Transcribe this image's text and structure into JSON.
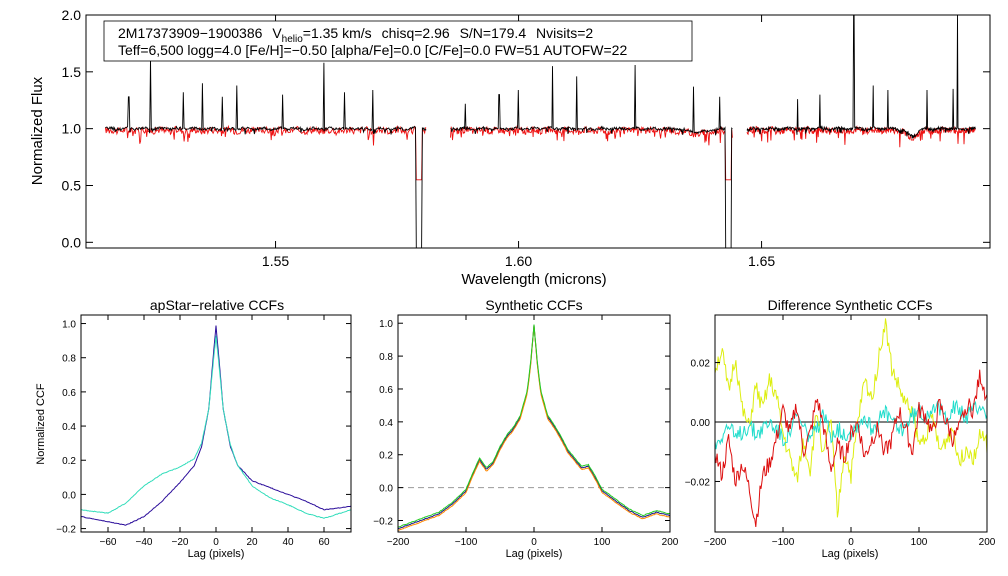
{
  "colors": {
    "spectrum_observed": "#000000",
    "spectrum_model": "#ee1111",
    "ccf_primary": "#2a0c9a",
    "ccf_secondary": "#33ddbb",
    "series_red": "#dd1010",
    "series_green": "#22cc22",
    "series_cyan": "#22ddcc",
    "series_yellow": "#ddee11",
    "series_navy": "#1a1a8a",
    "series_orange": "#ff8800"
  },
  "chart_data": [
    {
      "id": "spectrum",
      "type": "line",
      "title": "",
      "xlabel": "Wavelength (microns)",
      "ylabel": "Normalized Flux",
      "xlim": [
        1.511,
        1.697
      ],
      "ylim": [
        -0.05,
        2.0
      ],
      "xticks": [
        1.55,
        1.6,
        1.65
      ],
      "xtick_labels": [
        "1.55",
        "1.60",
        "1.65"
      ],
      "yticks": [
        0.0,
        0.5,
        1.0,
        1.5,
        2.0
      ],
      "ytick_labels": [
        "0.0",
        "0.5",
        "1.0",
        "1.5",
        "2.0"
      ],
      "chips": [
        [
          1.515,
          1.581
        ],
        [
          1.586,
          1.644
        ],
        [
          1.647,
          1.694
        ]
      ],
      "emission_spikes": [
        [
          1.5198,
          1.28
        ],
        [
          1.5243,
          1.62
        ],
        [
          1.531,
          1.32
        ],
        [
          1.535,
          1.4
        ],
        [
          1.539,
          1.28
        ],
        [
          1.542,
          1.38
        ],
        [
          1.5515,
          1.3
        ],
        [
          1.56,
          1.58
        ],
        [
          1.5642,
          1.32
        ],
        [
          1.57,
          1.34
        ],
        [
          1.589,
          1.22
        ],
        [
          1.596,
          1.3
        ],
        [
          1.6,
          1.34
        ],
        [
          1.607,
          1.55
        ],
        [
          1.612,
          1.46
        ],
        [
          1.624,
          1.56
        ],
        [
          1.636,
          1.37
        ],
        [
          1.6414,
          1.28
        ],
        [
          1.6574,
          1.26
        ],
        [
          1.662,
          1.3
        ],
        [
          1.669,
          2.02
        ],
        [
          1.673,
          1.38
        ],
        [
          1.676,
          1.34
        ],
        [
          1.684,
          1.34
        ],
        [
          1.6894,
          1.35
        ],
        [
          1.6903,
          2.02
        ]
      ],
      "deep_drops": [
        [
          1.5795,
          -0.05
        ],
        [
          1.6432,
          -0.05
        ]
      ],
      "series": [
        {
          "name": "observed",
          "color_key": "spectrum_observed",
          "continuum": 1.0,
          "noise": 0.012
        },
        {
          "name": "model",
          "color_key": "spectrum_model",
          "continuum": 0.985,
          "noise": 0.03
        }
      ],
      "annotation": {
        "line1_id": "2M17373909−1900386",
        "line1_vhelio_prefix": "V",
        "line1_vhelio_sub": "helio",
        "line1_vhelio_value": "=1.35 km/s",
        "line1_chisq": "chisq=2.96",
        "line1_sn": "S/N=179.4",
        "line1_nvisits": "Nvisits=2",
        "line2": "Teff=6,500 logg=4.0 [Fe/H]=−0.50 [alpha/Fe]=0.0 [C/Fe]=0.0 FW=51 AUTOFW=22"
      }
    },
    {
      "id": "apstar_ccf",
      "type": "line",
      "title": "apStar−relative CCFs",
      "xlabel": "Lag (pixels)",
      "ylabel": "Normalized CCF",
      "xlim": [
        -75,
        75
      ],
      "ylim": [
        -0.22,
        1.05
      ],
      "xticks": [
        -60,
        -40,
        -20,
        0,
        20,
        40,
        60
      ],
      "xtick_labels": [
        "−60",
        "−40",
        "−20",
        "0",
        "20",
        "40",
        "60"
      ],
      "yticks": [
        -0.2,
        0.0,
        0.2,
        0.4,
        0.6,
        0.8,
        1.0
      ],
      "ytick_labels": [
        "−0.2",
        "0.0",
        "0.2",
        "0.4",
        "0.6",
        "0.8",
        "1.0"
      ],
      "series": [
        {
          "name": "ccf_primary",
          "color_key": "ccf_primary",
          "x": [
            -75,
            -60,
            -50,
            -40,
            -30,
            -20,
            -12,
            -8,
            -4,
            -2,
            0,
            2,
            4,
            8,
            12,
            20,
            30,
            40,
            50,
            60,
            75
          ],
          "y": [
            -0.13,
            -0.16,
            -0.18,
            -0.13,
            -0.04,
            0.07,
            0.17,
            0.28,
            0.5,
            0.75,
            0.99,
            0.75,
            0.5,
            0.28,
            0.17,
            0.08,
            0.04,
            0.0,
            -0.04,
            -0.09,
            -0.07
          ]
        },
        {
          "name": "ccf_secondary",
          "color_key": "ccf_secondary",
          "x": [
            -75,
            -60,
            -50,
            -40,
            -30,
            -20,
            -12,
            -8,
            -4,
            -2,
            0,
            2,
            4,
            8,
            12,
            20,
            30,
            40,
            50,
            60,
            75
          ],
          "y": [
            -0.09,
            -0.11,
            -0.05,
            0.05,
            0.12,
            0.16,
            0.21,
            0.3,
            0.5,
            0.72,
            0.93,
            0.72,
            0.5,
            0.29,
            0.17,
            0.05,
            -0.02,
            -0.06,
            -0.11,
            -0.14,
            -0.09
          ]
        }
      ]
    },
    {
      "id": "synthetic_ccf",
      "type": "line",
      "title": "Synthetic CCFs",
      "xlabel": "Lag (pixels)",
      "ylabel": "",
      "xlim": [
        -200,
        200
      ],
      "ylim": [
        -0.27,
        1.05
      ],
      "xticks": [
        -200,
        -100,
        0,
        100,
        200
      ],
      "xtick_labels": [
        "−200",
        "−100",
        "0",
        "100",
        "200"
      ],
      "yticks": [
        -0.2,
        0.0,
        0.2,
        0.4,
        0.6,
        0.8,
        1.0
      ],
      "ytick_labels": [
        "−0.2",
        "0.0",
        "0.2",
        "0.4",
        "0.6",
        "0.8",
        "1.0"
      ],
      "reference_line": {
        "y": 0.0,
        "style": "dashed",
        "color": "#999999"
      },
      "series": [
        {
          "name": "navy",
          "color_key": "series_navy",
          "x": [
            -200,
            -180,
            -160,
            -140,
            -120,
            -100,
            -90,
            -80,
            -70,
            -60,
            -50,
            -40,
            -30,
            -20,
            -10,
            -5,
            0,
            5,
            10,
            20,
            30,
            40,
            50,
            60,
            70,
            80,
            90,
            100,
            120,
            140,
            160,
            180,
            200
          ],
          "y": [
            -0.25,
            -0.22,
            -0.19,
            -0.16,
            -0.1,
            -0.02,
            0.08,
            0.17,
            0.11,
            0.15,
            0.24,
            0.31,
            0.36,
            0.43,
            0.58,
            0.75,
            0.99,
            0.75,
            0.58,
            0.43,
            0.37,
            0.3,
            0.22,
            0.17,
            0.12,
            0.13,
            0.06,
            -0.02,
            -0.08,
            -0.14,
            -0.18,
            -0.15,
            -0.17
          ]
        },
        {
          "name": "orange",
          "color_key": "series_orange",
          "x": [
            -200,
            -180,
            -160,
            -140,
            -120,
            -100,
            -90,
            -80,
            -70,
            -60,
            -50,
            -40,
            -30,
            -20,
            -10,
            -5,
            0,
            5,
            10,
            20,
            30,
            40,
            50,
            60,
            70,
            80,
            90,
            100,
            120,
            140,
            160,
            180,
            200
          ],
          "y": [
            -0.26,
            -0.23,
            -0.2,
            -0.17,
            -0.11,
            -0.03,
            0.07,
            0.16,
            0.1,
            0.14,
            0.23,
            0.3,
            0.35,
            0.42,
            0.57,
            0.74,
            0.99,
            0.74,
            0.57,
            0.42,
            0.36,
            0.29,
            0.21,
            0.16,
            0.11,
            0.12,
            0.05,
            -0.03,
            -0.09,
            -0.15,
            -0.19,
            -0.16,
            -0.18
          ]
        },
        {
          "name": "green",
          "color_key": "series_green",
          "x": [
            -200,
            -180,
            -160,
            -140,
            -120,
            -100,
            -90,
            -80,
            -70,
            -60,
            -50,
            -40,
            -30,
            -20,
            -10,
            -5,
            0,
            5,
            10,
            20,
            30,
            40,
            50,
            60,
            70,
            80,
            90,
            100,
            120,
            140,
            160,
            180,
            200
          ],
          "y": [
            -0.24,
            -0.21,
            -0.18,
            -0.15,
            -0.09,
            -0.01,
            0.09,
            0.18,
            0.12,
            0.16,
            0.25,
            0.32,
            0.37,
            0.44,
            0.59,
            0.76,
            0.99,
            0.76,
            0.59,
            0.44,
            0.38,
            0.31,
            0.23,
            0.18,
            0.13,
            0.14,
            0.07,
            -0.01,
            -0.07,
            -0.13,
            -0.17,
            -0.14,
            -0.16
          ]
        }
      ]
    },
    {
      "id": "difference_ccf",
      "type": "line",
      "title": "Difference Synthetic CCFs",
      "xlabel": "Lag (pixels)",
      "ylabel": "",
      "xlim": [
        -200,
        200
      ],
      "ylim": [
        -0.037,
        0.036
      ],
      "xticks": [
        -200,
        -100,
        0,
        100,
        200
      ],
      "xtick_labels": [
        "−200",
        "−100",
        "0",
        "100",
        "200"
      ],
      "yticks": [
        -0.02,
        0.0,
        0.02
      ],
      "ytick_labels": [
        "−0.02",
        "0.00",
        "0.02"
      ],
      "reference_line": {
        "y": 0.0,
        "style": "solid",
        "color": "#000000"
      },
      "series": [
        {
          "name": "yellow",
          "color_key": "series_yellow",
          "x": [
            -200,
            -190,
            -180,
            -170,
            -160,
            -150,
            -140,
            -130,
            -120,
            -110,
            -100,
            -90,
            -80,
            -70,
            -60,
            -50,
            -40,
            -30,
            -20,
            -10,
            0,
            10,
            20,
            30,
            40,
            50,
            60,
            70,
            80,
            90,
            100,
            110,
            120,
            130,
            140,
            150,
            160,
            170,
            180,
            190,
            200
          ],
          "y": [
            0.018,
            0.024,
            0.01,
            0.022,
            0.004,
            -0.002,
            0.012,
            0.004,
            0.014,
            0.009,
            -0.004,
            -0.012,
            -0.02,
            -0.006,
            -0.016,
            0.004,
            -0.012,
            0.002,
            -0.032,
            -0.01,
            -0.018,
            0.0,
            0.014,
            0.008,
            0.02,
            0.034,
            0.018,
            0.012,
            0.006,
            0.004,
            -0.008,
            -0.004,
            0.002,
            -0.01,
            -0.006,
            -0.002,
            -0.014,
            -0.008,
            -0.012,
            -0.004,
            -0.008
          ]
        },
        {
          "name": "cyan",
          "color_key": "series_cyan",
          "x": [
            -200,
            -190,
            -180,
            -170,
            -160,
            -150,
            -140,
            -130,
            -120,
            -110,
            -100,
            -90,
            -80,
            -70,
            -60,
            -50,
            -40,
            -30,
            -20,
            -10,
            0,
            10,
            20,
            30,
            40,
            50,
            60,
            70,
            80,
            90,
            100,
            110,
            120,
            130,
            140,
            150,
            160,
            170,
            180,
            190,
            200
          ],
          "y": [
            -0.008,
            -0.004,
            -0.001,
            -0.006,
            -0.003,
            -0.001,
            -0.004,
            -0.002,
            0.0,
            -0.002,
            -0.006,
            -0.003,
            0.002,
            -0.002,
            -0.005,
            -0.003,
            0.002,
            -0.004,
            -0.002,
            -0.004,
            -0.003,
            -0.001,
            0.002,
            -0.002,
            0.0,
            0.003,
            0.001,
            -0.003,
            -0.001,
            0.002,
            0.004,
            0.002,
            0.006,
            0.004,
            0.002,
            0.005,
            0.004,
            0.001,
            0.004,
            0.006,
            0.003
          ]
        },
        {
          "name": "red",
          "color_key": "series_red",
          "x": [
            -200,
            -190,
            -180,
            -170,
            -160,
            -150,
            -140,
            -130,
            -120,
            -110,
            -100,
            -90,
            -80,
            -70,
            -60,
            -50,
            -40,
            -30,
            -20,
            -10,
            0,
            10,
            20,
            30,
            40,
            50,
            60,
            70,
            80,
            90,
            100,
            110,
            120,
            130,
            140,
            150,
            160,
            170,
            180,
            190,
            200
          ],
          "y": [
            -0.01,
            -0.018,
            -0.006,
            -0.02,
            -0.014,
            -0.022,
            -0.034,
            -0.018,
            -0.014,
            -0.006,
            0.004,
            -0.004,
            0.006,
            -0.01,
            -0.004,
            0.008,
            -0.002,
            -0.016,
            -0.008,
            -0.012,
            -0.004,
            0.0,
            -0.012,
            -0.006,
            -0.002,
            -0.01,
            -0.006,
            0.004,
            -0.002,
            -0.01,
            0.004,
            0.002,
            -0.004,
            0.006,
            0.0,
            -0.006,
            -0.002,
            0.006,
            0.004,
            0.016,
            0.008
          ]
        }
      ]
    }
  ]
}
